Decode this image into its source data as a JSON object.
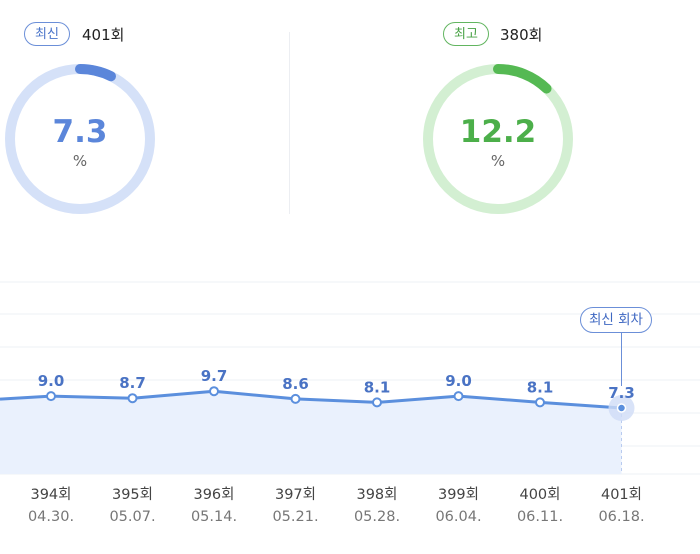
{
  "latest": {
    "badge": "최신",
    "round": "401회",
    "value": "7.3",
    "unit": "%",
    "fraction": 0.073,
    "color": "#5b86da",
    "track": "#d5e1f8"
  },
  "best": {
    "badge": "최고",
    "round": "380회",
    "value": "12.2",
    "unit": "%",
    "fraction": 0.122,
    "color": "#55b953",
    "track": "#d3efd2"
  },
  "callout": "최신 회차",
  "chart_data": {
    "type": "area",
    "categories": [
      "394회",
      "395회",
      "396회",
      "397회",
      "398회",
      "399회",
      "400회",
      "401회"
    ],
    "dates": [
      "04.30.",
      "05.07.",
      "05.14.",
      "05.21.",
      "05.28.",
      "06.04.",
      "06.11.",
      "06.18."
    ],
    "values": [
      9.0,
      8.7,
      9.7,
      8.6,
      8.1,
      9.0,
      8.1,
      7.3
    ],
    "value_labels": [
      "9.0",
      "8.7",
      "9.7",
      "8.6",
      "8.1",
      "9.0",
      "8.1",
      "7.3"
    ],
    "series_color": "#5b8fdd",
    "fill_color": "#eaf1fd",
    "grid": true,
    "highlight_index": 7
  }
}
